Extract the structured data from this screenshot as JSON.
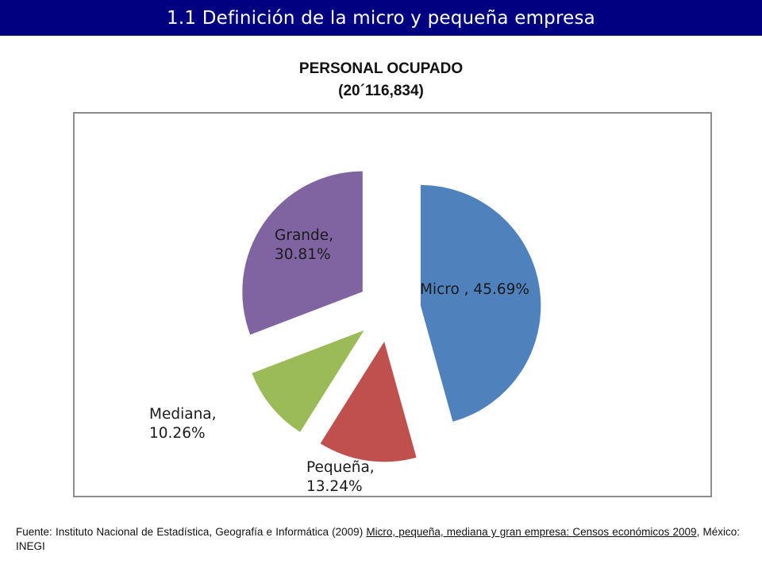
{
  "header": {
    "title": "1.1 Definición de la micro y pequeña empresa"
  },
  "colors": {
    "header_bg": "#000080",
    "micro": "#4F81BD",
    "pequena": "#C0504D",
    "mediana": "#9BBB59",
    "grande": "#8064A2"
  },
  "chart_data": {
    "type": "pie",
    "title": "PERSONAL OCUPADO",
    "subtitle": "(20´116,834)",
    "exploded": true,
    "slices": [
      {
        "name": "Micro",
        "value": 45.69,
        "label": "Micro , 45.69%",
        "color": "#4F81BD"
      },
      {
        "name": "Pequeña",
        "value": 13.24,
        "label_name": "Pequeña,",
        "label_value": "13.24%",
        "color": "#C0504D"
      },
      {
        "name": "Mediana",
        "value": 10.26,
        "label_name": "Mediana,",
        "label_value": "10.26%",
        "color": "#9BBB59"
      },
      {
        "name": "Grande",
        "value": 30.81,
        "label_name": "Grande,",
        "label_value": "30.81%",
        "color": "#8064A2"
      }
    ]
  },
  "source": {
    "prefix": "Fuente: Instituto Nacional de Estadística, Geografía e Informática (2009) ",
    "reference": "Micro, pequeña, mediana y gran empresa: Censos económicos 2009",
    "suffix": ", México: INEGI"
  }
}
